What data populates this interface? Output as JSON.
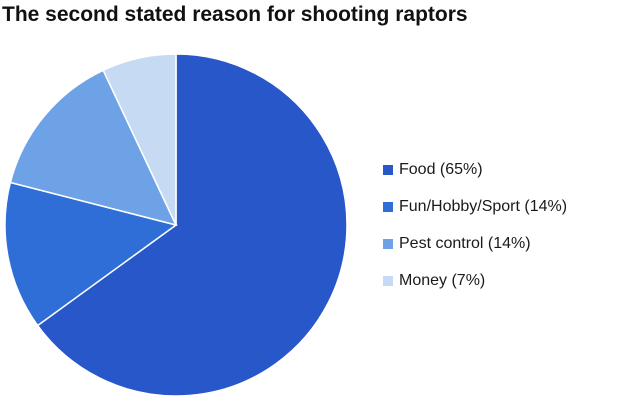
{
  "chart_data": {
    "type": "pie",
    "title": "The second stated reason for shooting raptors",
    "categories": [
      "Food (65%)",
      "Fun/Hobby/Sport (14%)",
      "Pest control (14%)",
      "Money (7%)"
    ],
    "values": [
      65,
      14,
      14,
      7
    ],
    "colors": [
      "#2857c9",
      "#2e6ed6",
      "#6da3e6",
      "#c7daf4"
    ],
    "legend_position": "right"
  }
}
